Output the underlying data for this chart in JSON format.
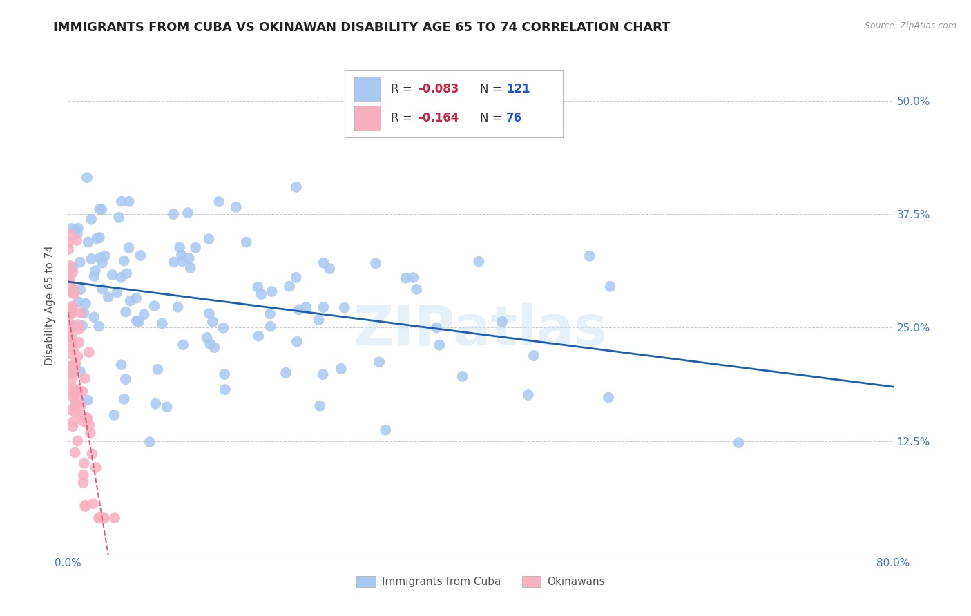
{
  "title": "IMMIGRANTS FROM CUBA VS OKINAWAN DISABILITY AGE 65 TO 74 CORRELATION CHART",
  "source": "Source: ZipAtlas.com",
  "ylabel": "Disability Age 65 to 74",
  "xlim": [
    0.0,
    0.8
  ],
  "ylim": [
    0.0,
    0.55
  ],
  "xticks": [
    0.0,
    0.1,
    0.2,
    0.3,
    0.4,
    0.5,
    0.6,
    0.7,
    0.8
  ],
  "ytick_positions": [
    0.0,
    0.125,
    0.25,
    0.375,
    0.5
  ],
  "ytick_labels_right": [
    "",
    "12.5%",
    "25.0%",
    "37.5%",
    "50.0%"
  ],
  "grid_color": "#cccccc",
  "background_color": "#ffffff",
  "blue_color": "#a8c8f0",
  "blue_line_color": "#1a5fb0",
  "pink_color": "#f8b0c0",
  "pink_line_color": "#e06080",
  "legend_cuba_label": "Immigrants from Cuba",
  "legend_okinawan_label": "Okinawans",
  "title_fontsize": 13,
  "axis_label_fontsize": 11,
  "tick_fontsize": 11,
  "watermark": "ZIPatlas",
  "R_blue": -0.083,
  "N_blue": 121,
  "R_pink": -0.164,
  "N_pink": 76,
  "legend_R_blue": "-0.083",
  "legend_N_blue": "121",
  "legend_R_pink": "-0.164",
  "legend_N_pink": "76"
}
